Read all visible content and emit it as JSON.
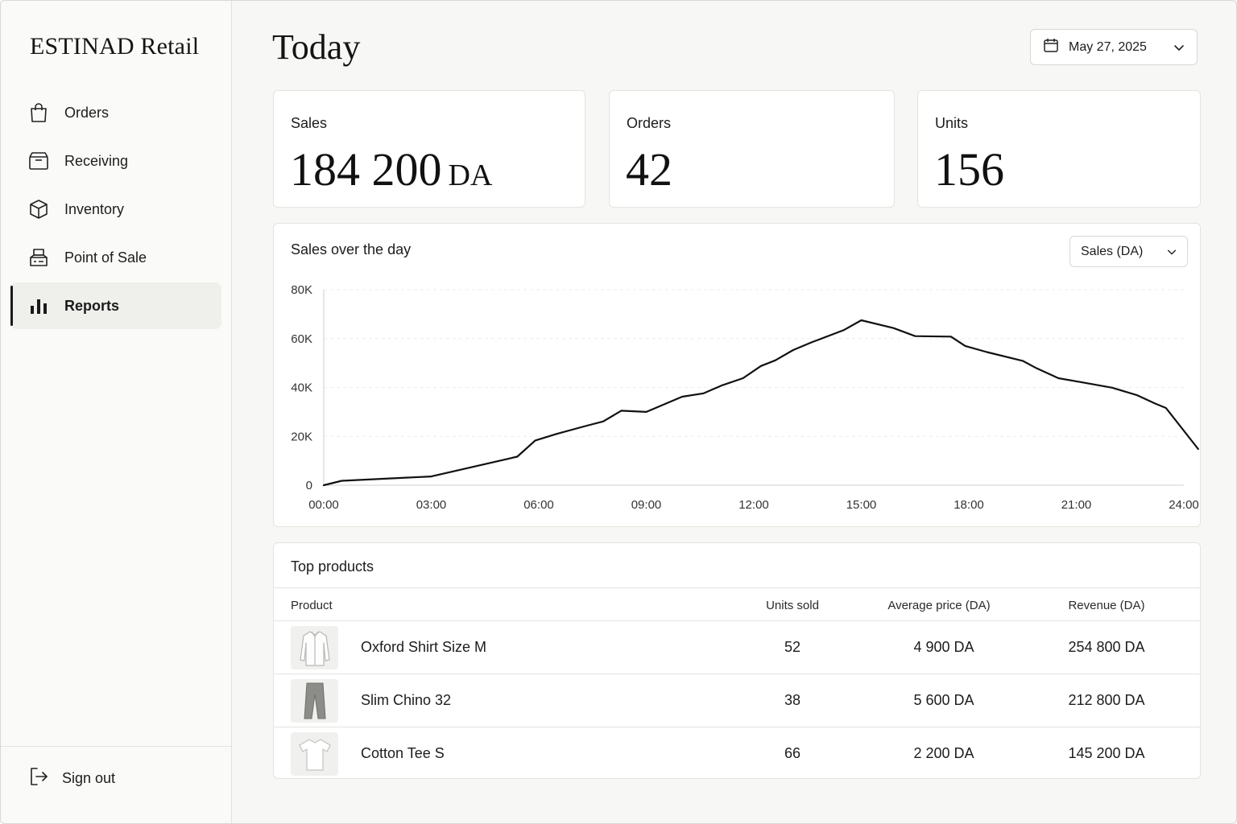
{
  "brand": "ESTINAD Retail",
  "nav": [
    {
      "label": "Orders",
      "icon": "shopping-bag-icon"
    },
    {
      "label": "Receiving",
      "icon": "package-box-icon"
    },
    {
      "label": "Inventory",
      "icon": "cube-icon"
    },
    {
      "label": "Point of Sale",
      "icon": "register-icon"
    },
    {
      "label": "Reports",
      "icon": "bar-chart-icon",
      "active": true
    }
  ],
  "sign_out": "Sign out",
  "page_title": "Today",
  "date_picker": {
    "value": "May 27, 2025",
    "icon": "calendar-icon"
  },
  "kpis": {
    "sales": {
      "label": "Sales",
      "value": "184 200",
      "unit": "DA"
    },
    "orders": {
      "label": "Orders",
      "value": "42"
    },
    "units": {
      "label": "Units",
      "value": "156"
    }
  },
  "chart": {
    "title": "Sales over the day",
    "metric_select": "Sales (DA)"
  },
  "chart_data": {
    "type": "line",
    "title": "Sales over the day",
    "xlabel": "",
    "ylabel": "",
    "x_ticks": [
      "00:00",
      "03:00",
      "06:00",
      "09:00",
      "12:00",
      "15:00",
      "18:00",
      "21:00",
      "24:00"
    ],
    "y_ticks": [
      "0",
      "20K",
      "40K",
      "60K",
      "80K"
    ],
    "xlim": [
      0,
      24
    ],
    "ylim": [
      0,
      80000
    ],
    "grid": true,
    "series": [
      {
        "x": [
          0,
          0.5,
          3,
          5.4,
          5.9,
          6.5,
          7.3,
          7.8,
          8.3,
          9.0,
          10.0,
          10.6,
          11.1,
          11.7,
          12.2,
          12.6,
          13.1,
          13.6,
          14.5,
          15.0,
          15.9,
          16.5,
          17.5,
          17.9,
          18.5,
          19.5,
          19.9,
          20.5,
          21.2,
          22.0,
          22.7,
          23.2,
          23.5,
          24.4
        ],
        "y": [
          0,
          1800,
          3600,
          11700,
          18300,
          21000,
          24200,
          26100,
          30500,
          30000,
          36200,
          37600,
          40800,
          43800,
          48800,
          51100,
          55300,
          58400,
          63400,
          67500,
          64300,
          61000,
          60800,
          57000,
          54500,
          50900,
          47800,
          43800,
          42000,
          39900,
          36800,
          33400,
          31600,
          14800
        ]
      }
    ]
  },
  "top_products": {
    "title": "Top products",
    "columns": [
      "Product",
      "Units sold",
      "Average price (DA)",
      "Revenue (DA)"
    ],
    "rows": [
      {
        "name": "Oxford Shirt Size M",
        "units": "52",
        "avg_price": "4 900 DA",
        "revenue": "254 800 DA",
        "thumb": "shirt-thumbnail"
      },
      {
        "name": "Slim Chino 32",
        "units": "38",
        "avg_price": "5 600 DA",
        "revenue": "212 800 DA",
        "thumb": "trousers-thumbnail"
      },
      {
        "name": "Cotton Tee S",
        "units": "66",
        "avg_price": "2 200 DA",
        "revenue": "145 200 DA",
        "thumb": "tshirt-thumbnail"
      }
    ]
  }
}
